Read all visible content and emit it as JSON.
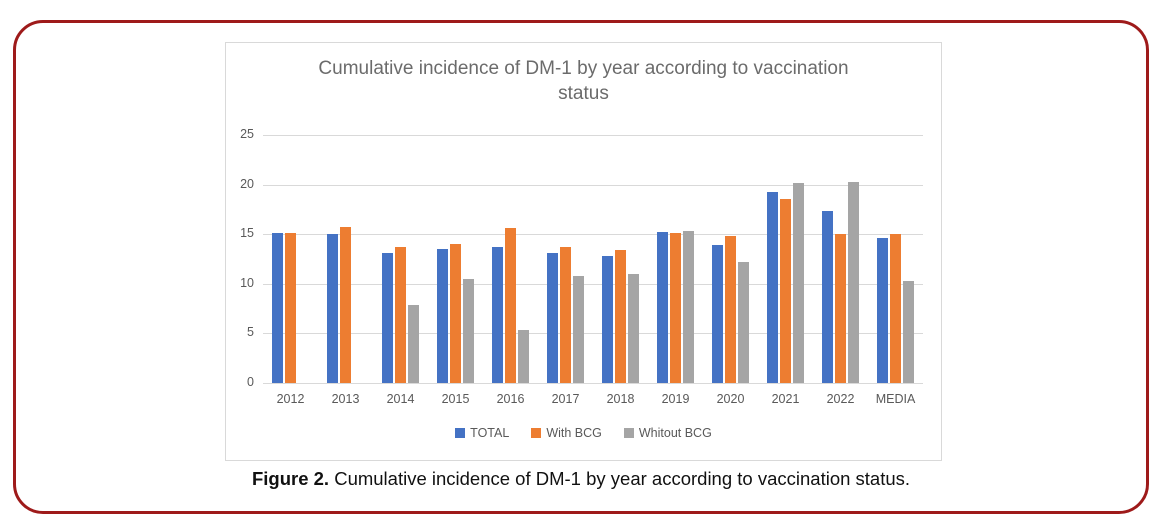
{
  "figure": {
    "caption_label": "Figure 2.",
    "caption_text": " Cumulative incidence of DM-1 by year according to vaccination status."
  },
  "chart_data": {
    "type": "bar",
    "title": "Cumulative incidence of DM-1 by year according to vaccination status",
    "categories": [
      "2012",
      "2013",
      "2014",
      "2015",
      "2016",
      "2017",
      "2018",
      "2019",
      "2020",
      "2021",
      "2022",
      "MEDIA"
    ],
    "series": [
      {
        "name": "TOTAL",
        "color": "#4472C4",
        "values": [
          15.1,
          15.0,
          13.1,
          13.5,
          13.7,
          13.1,
          12.8,
          15.2,
          13.9,
          19.3,
          17.3,
          14.6
        ]
      },
      {
        "name": "With BCG",
        "color": "#ED7D31",
        "values": [
          15.1,
          15.7,
          13.7,
          14.0,
          15.6,
          13.7,
          13.4,
          15.1,
          14.8,
          18.6,
          15.0,
          15.0
        ]
      },
      {
        "name": "Whitout BCG",
        "color": "#A5A5A5",
        "values": [
          0,
          0,
          7.9,
          10.5,
          5.3,
          10.8,
          11.0,
          15.3,
          12.2,
          20.2,
          20.3,
          10.3
        ]
      }
    ],
    "xlabel": "",
    "ylabel": "",
    "ylim": [
      0,
      25
    ],
    "yticks": [
      0,
      5,
      10,
      15,
      20,
      25
    ],
    "grid": true,
    "legend_position": "bottom"
  },
  "colors": {
    "frame_border": "#9e1a1a",
    "chart_border": "#d9d9d9",
    "gridline": "#d9d9d9",
    "axis_text": "#595959",
    "title_text": "#6b6b6b",
    "caption_text": "#111111"
  }
}
